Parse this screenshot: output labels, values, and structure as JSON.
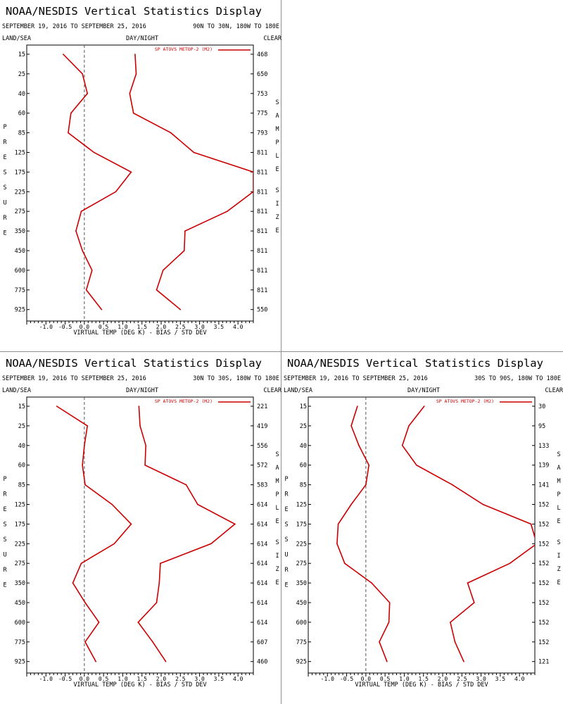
{
  "header": {
    "title": "NOAA/NESDIS Vertical Statistics Display"
  },
  "labels": {
    "land_sea": "LAND/SEA",
    "day_night": "DAY/NIGHT",
    "clear": "CLEAR",
    "xlabel": "VIRTUAL TEMP (DEG K) - BIAS / STD DEV",
    "ylabel": "PRESSURE",
    "sample_size": "SAMPLE SIZE"
  },
  "panels": [
    {
      "date_range": "SEPTEMBER 19, 2016 TO SEPTEMBER 25, 2016",
      "region": "90N TO 30N, 180W TO 180E",
      "legend": "SP ATOVS METOP-2 (M2)"
    },
    {
      "date_range": "SEPTEMBER 19, 2016 TO SEPTEMBER 25, 2016",
      "region": "30N TO 30S, 180W TO 180E",
      "legend": "SP ATOVS METOP-2 (M2)"
    },
    {
      "date_range": "SEPTEMBER 19, 2016 TO SEPTEMBER 25, 2016",
      "region": "30S TO 90S, 180W TO 180E",
      "legend": "SP ATOVS METOP-2 (M2)"
    }
  ],
  "chart_data": [
    {
      "type": "line",
      "region": "90N TO 30N, 180W TO 180E",
      "pressure_levels": [
        "15",
        "25",
        "40",
        "60",
        "85",
        "125",
        "175",
        "225",
        "275",
        "350",
        "450",
        "600",
        "775",
        "925"
      ],
      "xticks": [
        "-1.0",
        "-0.5",
        "0.0",
        "0.5",
        "1.0",
        "1.5",
        "2.0",
        "2.5",
        "3.0",
        "3.5",
        "4.0"
      ],
      "xlim": [
        -1.5,
        4.4
      ],
      "sample_size": [
        "468",
        "650",
        "753",
        "775",
        "793",
        "811",
        "811",
        "811",
        "811",
        "811",
        "811",
        "811",
        "811",
        "550"
      ],
      "bias": [
        -0.55,
        -0.05,
        0.08,
        -0.35,
        -0.42,
        0.25,
        1.22,
        0.82,
        -0.08,
        -0.22,
        -0.05,
        0.2,
        0.05,
        0.45
      ],
      "stddev": [
        1.32,
        1.35,
        1.18,
        1.28,
        2.25,
        2.85,
        4.4,
        4.4,
        3.72,
        2.62,
        2.6,
        2.05,
        1.88,
        2.5
      ],
      "line_color": "#cc0000"
    },
    {
      "type": "line",
      "region": "30N TO 30S, 180W TO 180E",
      "pressure_levels": [
        "15",
        "25",
        "40",
        "60",
        "85",
        "125",
        "175",
        "225",
        "275",
        "350",
        "450",
        "600",
        "775",
        "925"
      ],
      "xticks": [
        "-1.0",
        "-0.5",
        "0.0",
        "0.5",
        "1.0",
        "1.5",
        "2.0",
        "2.5",
        "3.0",
        "3.5",
        "4.0"
      ],
      "xlim": [
        -1.5,
        4.4
      ],
      "sample_size": [
        "221",
        "419",
        "556",
        "572",
        "583",
        "614",
        "614",
        "614",
        "614",
        "614",
        "614",
        "614",
        "607",
        "460"
      ],
      "bias": [
        -0.72,
        0.08,
        0.0,
        -0.05,
        0.02,
        0.72,
        1.22,
        0.78,
        -0.08,
        -0.3,
        0.02,
        0.38,
        0.02,
        0.3
      ],
      "stddev": [
        1.42,
        1.45,
        1.6,
        1.58,
        2.65,
        2.95,
        3.92,
        3.3,
        1.98,
        1.95,
        1.88,
        1.4,
        1.78,
        2.12
      ],
      "line_color": "#cc0000"
    },
    {
      "type": "line",
      "region": "30S TO 90S, 180W TO 180E",
      "pressure_levels": [
        "15",
        "25",
        "40",
        "60",
        "85",
        "125",
        "175",
        "225",
        "275",
        "350",
        "450",
        "600",
        "775",
        "925"
      ],
      "xticks": [
        "-1.0",
        "-0.5",
        "0.0",
        "0.5",
        "1.0",
        "1.5",
        "2.0",
        "2.5",
        "3.0",
        "3.5",
        "4.0"
      ],
      "xlim": [
        -1.5,
        4.4
      ],
      "sample_size": [
        "30",
        "95",
        "133",
        "139",
        "141",
        "152",
        "152",
        "152",
        "152",
        "152",
        "152",
        "152",
        "152",
        "121"
      ],
      "bias": [
        -0.22,
        -0.38,
        -0.18,
        0.08,
        0.0,
        -0.38,
        -0.72,
        -0.75,
        -0.55,
        0.15,
        0.62,
        0.6,
        0.35,
        0.55
      ],
      "stddev": [
        1.52,
        1.12,
        0.95,
        1.32,
        2.25,
        3.05,
        4.3,
        4.45,
        3.75,
        2.65,
        2.82,
        2.2,
        2.32,
        2.55
      ],
      "line_color": "#cc0000"
    }
  ]
}
